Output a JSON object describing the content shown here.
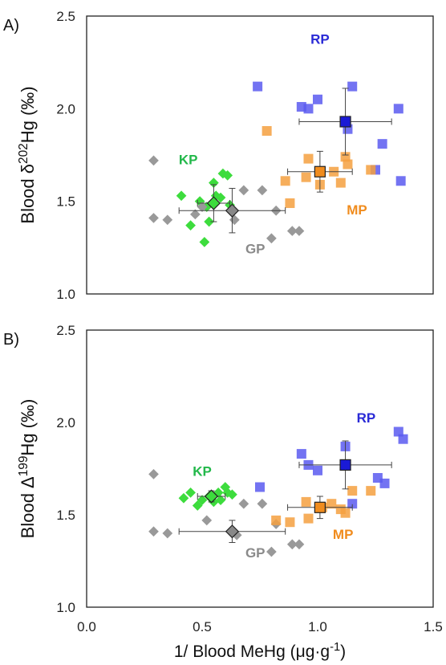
{
  "colors": {
    "KP": "#3ddc3d",
    "GP": "#999999",
    "RP": "#5a5af0",
    "MP": "#f5a040",
    "RP_mean": "#1a1ad6",
    "MP_mean": "#f08c1e",
    "KP_mean": "#3ddc3d",
    "GP_mean": "#888888"
  },
  "chart_data": [
    {
      "type": "scatter",
      "panel_label": "A)",
      "ylabel_parts": [
        "Blood δ",
        "202",
        "Hg (‰)"
      ],
      "ylim": [
        1.0,
        2.5
      ],
      "yticks": [
        "1.0",
        "1.5",
        "2.0",
        "2.5"
      ],
      "xlim": [
        0.0,
        1.5
      ],
      "grid": false,
      "series": [
        {
          "name": "KP",
          "marker": "diamond",
          "points": [
            [
              0.41,
              1.53
            ],
            [
              0.45,
              1.37
            ],
            [
              0.49,
              1.5
            ],
            [
              0.51,
              1.28
            ],
            [
              0.52,
              1.47
            ],
            [
              0.53,
              1.39
            ],
            [
              0.55,
              1.6
            ],
            [
              0.56,
              1.53
            ],
            [
              0.58,
              1.52
            ],
            [
              0.59,
              1.65
            ],
            [
              0.61,
              1.64
            ],
            [
              0.62,
              1.48
            ]
          ],
          "mean": {
            "x": 0.55,
            "y": 1.49,
            "xerr": 0.07,
            "yerr": 0.1
          }
        },
        {
          "name": "GP",
          "marker": "diamond",
          "points": [
            [
              0.29,
              1.72
            ],
            [
              0.29,
              1.41
            ],
            [
              0.35,
              1.4
            ],
            [
              0.47,
              1.43
            ],
            [
              0.5,
              1.47
            ],
            [
              0.64,
              1.4
            ],
            [
              0.68,
              1.56
            ],
            [
              0.76,
              1.56
            ],
            [
              0.8,
              1.3
            ],
            [
              0.82,
              1.45
            ],
            [
              0.89,
              1.34
            ],
            [
              0.92,
              1.34
            ]
          ],
          "mean": {
            "x": 0.63,
            "y": 1.45,
            "xerr": 0.23,
            "yerr": 0.12
          }
        },
        {
          "name": "RP",
          "marker": "square",
          "points": [
            [
              0.74,
              2.12
            ],
            [
              0.93,
              2.01
            ],
            [
              0.96,
              2.0
            ],
            [
              1.0,
              2.05
            ],
            [
              1.13,
              1.89
            ],
            [
              1.15,
              2.12
            ],
            [
              1.28,
              1.81
            ],
            [
              1.25,
              1.67
            ],
            [
              1.35,
              2.0
            ],
            [
              1.36,
              1.61
            ]
          ],
          "mean": {
            "x": 1.12,
            "y": 1.93,
            "xerr": 0.2,
            "yerr": 0.18
          }
        },
        {
          "name": "MP",
          "marker": "square",
          "points": [
            [
              0.78,
              1.88
            ],
            [
              0.86,
              1.61
            ],
            [
              0.88,
              1.49
            ],
            [
              0.95,
              1.63
            ],
            [
              0.96,
              1.73
            ],
            [
              1.01,
              1.59
            ],
            [
              1.07,
              1.66
            ],
            [
              1.1,
              1.6
            ],
            [
              1.12,
              1.74
            ],
            [
              1.13,
              1.7
            ],
            [
              1.23,
              1.67
            ]
          ],
          "mean": {
            "x": 1.01,
            "y": 1.66,
            "xerr": 0.14,
            "yerr": 0.11
          }
        }
      ],
      "labels": [
        {
          "text": "KP",
          "group": "KP",
          "x": 0.44,
          "y": 1.7
        },
        {
          "text": "GP",
          "group": "GP",
          "x": 0.73,
          "y": 1.22
        },
        {
          "text": "RP",
          "group": "RP",
          "x": 1.01,
          "y": 2.35
        },
        {
          "text": "MP",
          "group": "MP",
          "x": 1.17,
          "y": 1.43
        }
      ]
    },
    {
      "type": "scatter",
      "panel_label": "B)",
      "ylabel_parts": [
        "Blood Δ",
        "199",
        "Hg (‰)"
      ],
      "ylim": [
        1.0,
        2.5
      ],
      "yticks": [
        "1.0",
        "1.5",
        "2.0",
        "2.5"
      ],
      "xlim": [
        0.0,
        1.5
      ],
      "xticks": [
        "0.0",
        "0.5",
        "1.0",
        "1.5"
      ],
      "xlabel_parts": [
        "1/ Blood MeHg (μg·g",
        "-1",
        ")"
      ],
      "grid": false,
      "series": [
        {
          "name": "KP",
          "marker": "diamond",
          "points": [
            [
              0.42,
              1.59
            ],
            [
              0.45,
              1.62
            ],
            [
              0.48,
              1.55
            ],
            [
              0.5,
              1.58
            ],
            [
              0.53,
              1.6
            ],
            [
              0.55,
              1.57
            ],
            [
              0.57,
              1.62
            ],
            [
              0.58,
              1.58
            ],
            [
              0.6,
              1.65
            ],
            [
              0.61,
              1.62
            ],
            [
              0.63,
              1.61
            ]
          ],
          "mean": {
            "x": 0.54,
            "y": 1.6,
            "xerr": 0.06,
            "yerr": 0.03
          }
        },
        {
          "name": "GP",
          "marker": "diamond",
          "points": [
            [
              0.29,
              1.72
            ],
            [
              0.29,
              1.41
            ],
            [
              0.35,
              1.4
            ],
            [
              0.52,
              1.47
            ],
            [
              0.65,
              1.39
            ],
            [
              0.68,
              1.56
            ],
            [
              0.76,
              1.56
            ],
            [
              0.8,
              1.3
            ],
            [
              0.82,
              1.45
            ],
            [
              0.89,
              1.34
            ],
            [
              0.92,
              1.34
            ]
          ],
          "mean": {
            "x": 0.63,
            "y": 1.41,
            "xerr": 0.23,
            "yerr": 0.06
          }
        },
        {
          "name": "RP",
          "marker": "square",
          "points": [
            [
              0.75,
              1.65
            ],
            [
              0.93,
              1.83
            ],
            [
              0.96,
              1.77
            ],
            [
              1.0,
              1.74
            ],
            [
              1.12,
              1.87
            ],
            [
              1.15,
              1.56
            ],
            [
              1.26,
              1.7
            ],
            [
              1.29,
              1.67
            ],
            [
              1.35,
              1.95
            ],
            [
              1.37,
              1.91
            ]
          ],
          "mean": {
            "x": 1.12,
            "y": 1.77,
            "xerr": 0.2,
            "yerr": 0.13
          }
        },
        {
          "name": "MP",
          "marker": "square",
          "points": [
            [
              0.82,
              1.47
            ],
            [
              0.88,
              1.46
            ],
            [
              0.95,
              1.57
            ],
            [
              0.96,
              1.48
            ],
            [
              1.02,
              1.54
            ],
            [
              1.06,
              1.56
            ],
            [
              1.1,
              1.53
            ],
            [
              1.12,
              1.51
            ],
            [
              1.15,
              1.63
            ],
            [
              1.23,
              1.63
            ]
          ],
          "mean": {
            "x": 1.01,
            "y": 1.54,
            "xerr": 0.14,
            "yerr": 0.06
          }
        }
      ],
      "labels": [
        {
          "text": "KP",
          "group": "KP",
          "x": 0.5,
          "y": 1.71
        },
        {
          "text": "GP",
          "group": "GP",
          "x": 0.73,
          "y": 1.27
        },
        {
          "text": "RP",
          "group": "RP",
          "x": 1.21,
          "y": 2.0
        },
        {
          "text": "MP",
          "group": "MP",
          "x": 1.11,
          "y": 1.37
        }
      ]
    }
  ]
}
